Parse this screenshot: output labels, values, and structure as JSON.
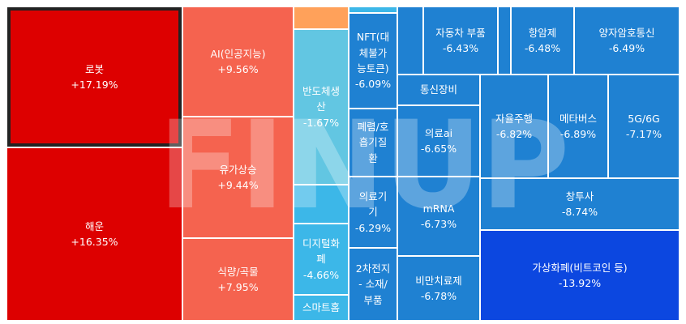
{
  "watermark": "FINUP",
  "chart_data": {
    "type": "treemap",
    "items": [
      {
        "id": "robot",
        "label": "로봇",
        "value": "+17.19%",
        "color": "#dd0000",
        "selected": true
      },
      {
        "id": "shipping",
        "label": "해운",
        "value": "+16.35%",
        "color": "#dd0000"
      },
      {
        "id": "ai",
        "label": "AI(인공지능)",
        "value": "+9.56%",
        "color": "#f5634f"
      },
      {
        "id": "oil",
        "label": "유가상승",
        "value": "+9.44%",
        "color": "#f5634f"
      },
      {
        "id": "food",
        "label": "식량/곡물",
        "value": "+7.95%",
        "color": "#f5634f"
      },
      {
        "id": "orange-small",
        "label": "",
        "value": "",
        "color": "#ffa15a"
      },
      {
        "id": "semi-prod",
        "label": "반도체생\n산",
        "value": "-1.67%",
        "color": "#62c6e2"
      },
      {
        "id": "blue-small-a",
        "label": "",
        "value": "",
        "color": "#3cb7e8"
      },
      {
        "id": "digital-money",
        "label": "디지털화\n폐",
        "value": "-4.66%",
        "color": "#3cb7e8"
      },
      {
        "id": "smart-home",
        "label": "스마트홈",
        "value": "",
        "color": "#3cb7e8"
      },
      {
        "id": "cyan-top",
        "label": "",
        "value": "",
        "color": "#3cb7e8"
      },
      {
        "id": "nft",
        "label": "NFT(대\n체불가\n능토큰)",
        "value": "-6.09%",
        "color": "#1f81d2"
      },
      {
        "id": "lung",
        "label": "폐렴/호\n흡기질\n환",
        "value": "",
        "color": "#1f81d2"
      },
      {
        "id": "medical-device",
        "label": "의료기\n기",
        "value": "-6.29%",
        "color": "#1f81d2"
      },
      {
        "id": "battery",
        "label": "2차전지\n- 소재/\n부품",
        "value": "",
        "color": "#1f81d2"
      },
      {
        "id": "blank-a",
        "label": "",
        "value": "",
        "color": "#1f81d2"
      },
      {
        "id": "auto-parts",
        "label": "자동차 부품",
        "value": "-6.43%",
        "color": "#1f81d2"
      },
      {
        "id": "blank-b",
        "label": "",
        "value": "",
        "color": "#1f81d2"
      },
      {
        "id": "anticancer",
        "label": "항암제",
        "value": "-6.48%",
        "color": "#1f81d2"
      },
      {
        "id": "quantum",
        "label": "양자암호통신",
        "value": "-6.49%",
        "color": "#1f81d2"
      },
      {
        "id": "telecom",
        "label": "통신장비",
        "value": "",
        "color": "#1f81d2"
      },
      {
        "id": "medical-ai",
        "label": "의료ai",
        "value": "-6.65%",
        "color": "#1f81d2"
      },
      {
        "id": "autonomous",
        "label": "자율주행",
        "value": "-6.82%",
        "color": "#1f81d2"
      },
      {
        "id": "metaverse",
        "label": "메타버스",
        "value": "-6.89%",
        "color": "#1f81d2"
      },
      {
        "id": "5g",
        "label": "5G/6G",
        "value": "-7.17%",
        "color": "#1f81d2"
      },
      {
        "id": "mrna",
        "label": "mRNA",
        "value": "-6.73%",
        "color": "#1f81d2"
      },
      {
        "id": "vc",
        "label": "창투사",
        "value": "-8.74%",
        "color": "#1f81d2"
      },
      {
        "id": "obesity",
        "label": "비만치료제",
        "value": "-6.78%",
        "color": "#1f81d2"
      },
      {
        "id": "crypto",
        "label": "가상화폐(비트코인 등)",
        "value": "-13.92%",
        "color": "#0c47e0"
      }
    ]
  }
}
